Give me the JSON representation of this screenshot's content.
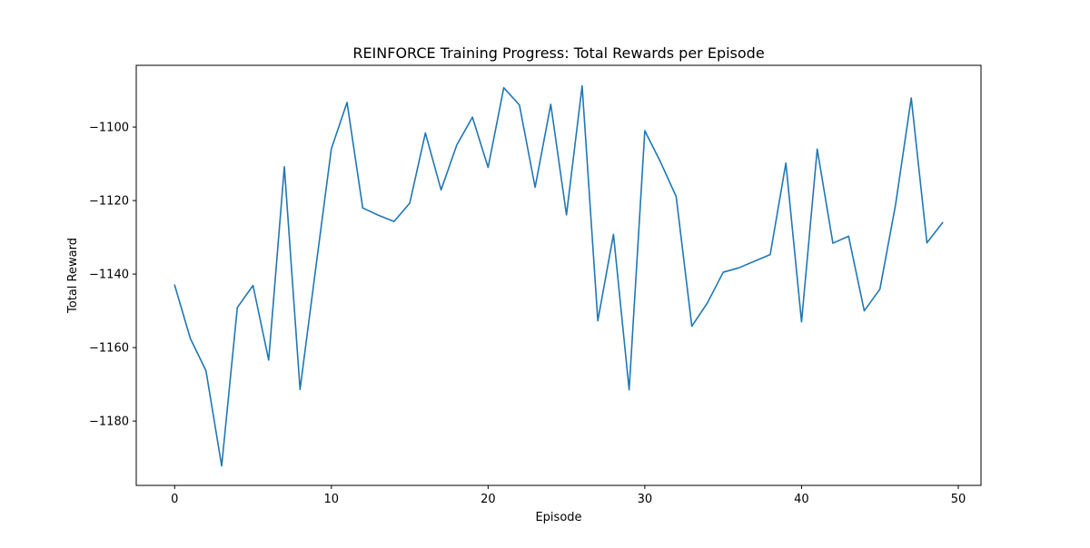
{
  "chart_data": {
    "type": "line",
    "title": "REINFORCE Training Progress: Total Rewards per Episode",
    "xlabel": "Episode",
    "ylabel": "Total Reward",
    "xlim": [
      -2.45,
      51.45
    ],
    "ylim": [
      -1197.5,
      -1083.2
    ],
    "xticks": [
      0,
      10,
      20,
      30,
      40,
      50
    ],
    "yticks": [
      -1180,
      -1160,
      -1140,
      -1120,
      -1100
    ],
    "grid": false,
    "legend": "none",
    "line_color": "#1f77b4",
    "series": [
      {
        "x": [
          0,
          1,
          2,
          3,
          4,
          5,
          6,
          7,
          8,
          9,
          10,
          11,
          12,
          13,
          14,
          15,
          16,
          17,
          18,
          19,
          20,
          21,
          22,
          23,
          24,
          25,
          26,
          27,
          28,
          29,
          30,
          31,
          32,
          33,
          34,
          35,
          36,
          37,
          38,
          39,
          40,
          41,
          42,
          43,
          44,
          45,
          46,
          47,
          48,
          49
        ],
        "values": [
          -1143,
          -1157.5,
          -1166.3,
          -1192.2,
          -1149.1,
          -1143.1,
          -1163.4,
          -1110.8,
          -1171.4,
          -1138.5,
          -1105.9,
          -1093.3,
          -1122.0,
          -1124.0,
          -1125.7,
          -1120.7,
          -1101.6,
          -1117.1,
          -1104.9,
          -1097.3,
          -1111.0,
          -1089.3,
          -1094.0,
          -1116.4,
          -1093.8,
          -1123.9,
          -1088.8,
          -1152.7,
          -1129.2,
          -1171.5,
          -1101.0,
          -1109.5,
          -1118.9,
          -1154.2,
          -1147.8,
          -1139.5,
          -1138.3,
          -1136.5,
          -1134.7,
          -1109.8,
          -1153.0,
          -1106.0,
          -1131.6,
          -1129.7,
          -1150.0,
          -1144.1,
          -1121.1,
          -1092.1,
          -1131.5,
          -1126.0
        ]
      }
    ]
  }
}
